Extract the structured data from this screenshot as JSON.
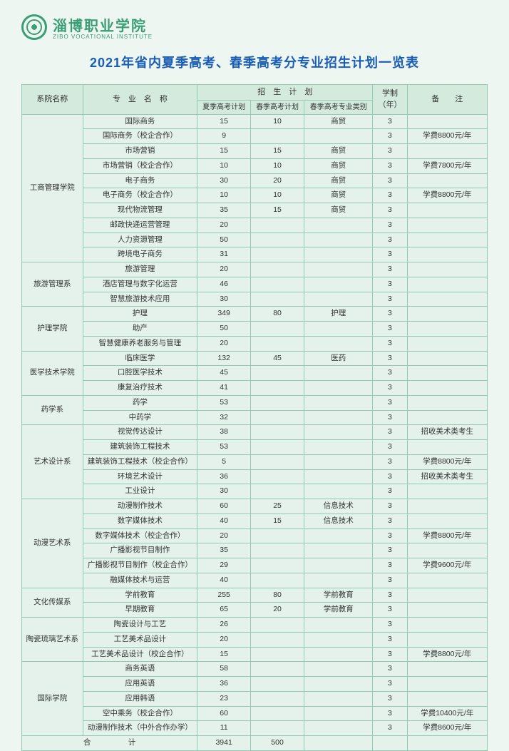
{
  "logo": {
    "cn": "淄博职业学院",
    "en": "ZIBO VOCATIONAL INSTITUTE"
  },
  "title": "2021年省内夏季高考、春季高考分专业招生计划一览表",
  "head": {
    "dept": "系院名称",
    "major": "专　业　名　称",
    "plan": "招　生　计　划",
    "summer": "夏季高考计划",
    "spring": "春季高考计划",
    "springCat": "春季高考专业类别",
    "years": "学制（年）",
    "remark": "备　　注"
  },
  "total": {
    "label": "合　　　　　计",
    "summer": "3941",
    "spring": "500"
  },
  "departments": [
    {
      "name": "工商管理学院",
      "rows": [
        {
          "major": "国际商务",
          "summer": "15",
          "spring": "10",
          "cat": "商贸",
          "yr": "3",
          "rem": ""
        },
        {
          "major": "国际商务（校企合作）",
          "summer": "9",
          "spring": "",
          "cat": "",
          "yr": "3",
          "rem": "学费8800元/年"
        },
        {
          "major": "市场营销",
          "summer": "15",
          "spring": "15",
          "cat": "商贸",
          "yr": "3",
          "rem": ""
        },
        {
          "major": "市场营销（校企合作）",
          "summer": "10",
          "spring": "10",
          "cat": "商贸",
          "yr": "3",
          "rem": "学费7800元/年"
        },
        {
          "major": "电子商务",
          "summer": "30",
          "spring": "20",
          "cat": "商贸",
          "yr": "3",
          "rem": ""
        },
        {
          "major": "电子商务（校企合作）",
          "summer": "10",
          "spring": "10",
          "cat": "商贸",
          "yr": "3",
          "rem": "学费8800元/年"
        },
        {
          "major": "现代物流管理",
          "summer": "35",
          "spring": "15",
          "cat": "商贸",
          "yr": "3",
          "rem": ""
        },
        {
          "major": "邮政快递运营管理",
          "summer": "20",
          "spring": "",
          "cat": "",
          "yr": "3",
          "rem": ""
        },
        {
          "major": "人力资源管理",
          "summer": "50",
          "spring": "",
          "cat": "",
          "yr": "3",
          "rem": ""
        },
        {
          "major": "跨境电子商务",
          "summer": "31",
          "spring": "",
          "cat": "",
          "yr": "3",
          "rem": ""
        }
      ]
    },
    {
      "name": "旅游管理系",
      "rows": [
        {
          "major": "旅游管理",
          "summer": "20",
          "spring": "",
          "cat": "",
          "yr": "3",
          "rem": ""
        },
        {
          "major": "酒店管理与数字化运营",
          "summer": "46",
          "spring": "",
          "cat": "",
          "yr": "3",
          "rem": ""
        },
        {
          "major": "智慧旅游技术应用",
          "summer": "30",
          "spring": "",
          "cat": "",
          "yr": "3",
          "rem": ""
        }
      ]
    },
    {
      "name": "护理学院",
      "rows": [
        {
          "major": "护理",
          "summer": "349",
          "spring": "80",
          "cat": "护理",
          "yr": "3",
          "rem": ""
        },
        {
          "major": "助产",
          "summer": "50",
          "spring": "",
          "cat": "",
          "yr": "3",
          "rem": ""
        },
        {
          "major": "智慧健康养老服务与管理",
          "summer": "20",
          "spring": "",
          "cat": "",
          "yr": "3",
          "rem": ""
        }
      ]
    },
    {
      "name": "医学技术学院",
      "rows": [
        {
          "major": "临床医学",
          "summer": "132",
          "spring": "45",
          "cat": "医药",
          "yr": "3",
          "rem": ""
        },
        {
          "major": "口腔医学技术",
          "summer": "45",
          "spring": "",
          "cat": "",
          "yr": "3",
          "rem": ""
        },
        {
          "major": "康复治疗技术",
          "summer": "41",
          "spring": "",
          "cat": "",
          "yr": "3",
          "rem": ""
        }
      ]
    },
    {
      "name": "药学系",
      "rows": [
        {
          "major": "药学",
          "summer": "53",
          "spring": "",
          "cat": "",
          "yr": "3",
          "rem": ""
        },
        {
          "major": "中药学",
          "summer": "32",
          "spring": "",
          "cat": "",
          "yr": "3",
          "rem": ""
        }
      ]
    },
    {
      "name": "艺术设计系",
      "rows": [
        {
          "major": "视觉传达设计",
          "summer": "38",
          "spring": "",
          "cat": "",
          "yr": "3",
          "rem": "招收美术类考生"
        },
        {
          "major": "建筑装饰工程技术",
          "summer": "53",
          "spring": "",
          "cat": "",
          "yr": "3",
          "rem": ""
        },
        {
          "major": "建筑装饰工程技术（校企合作）",
          "summer": "5",
          "spring": "",
          "cat": "",
          "yr": "3",
          "rem": "学费8800元/年"
        },
        {
          "major": "环境艺术设计",
          "summer": "36",
          "spring": "",
          "cat": "",
          "yr": "3",
          "rem": "招收美术类考生"
        },
        {
          "major": "工业设计",
          "summer": "30",
          "spring": "",
          "cat": "",
          "yr": "3",
          "rem": ""
        }
      ]
    },
    {
      "name": "动漫艺术系",
      "rows": [
        {
          "major": "动漫制作技术",
          "summer": "60",
          "spring": "25",
          "cat": "信息技术",
          "yr": "3",
          "rem": ""
        },
        {
          "major": "数字媒体技术",
          "summer": "40",
          "spring": "15",
          "cat": "信息技术",
          "yr": "3",
          "rem": ""
        },
        {
          "major": "数字媒体技术（校企合作）",
          "summer": "20",
          "spring": "",
          "cat": "",
          "yr": "3",
          "rem": "学费8800元/年"
        },
        {
          "major": "广播影视节目制作",
          "summer": "35",
          "spring": "",
          "cat": "",
          "yr": "3",
          "rem": ""
        },
        {
          "major": "广播影视节目制作（校企合作）",
          "summer": "29",
          "spring": "",
          "cat": "",
          "yr": "3",
          "rem": "学费9600元/年"
        },
        {
          "major": "融媒体技术与运营",
          "summer": "40",
          "spring": "",
          "cat": "",
          "yr": "3",
          "rem": ""
        }
      ]
    },
    {
      "name": "文化传媒系",
      "rows": [
        {
          "major": "学前教育",
          "summer": "255",
          "spring": "80",
          "cat": "学前教育",
          "yr": "3",
          "rem": ""
        },
        {
          "major": "早期教育",
          "summer": "65",
          "spring": "20",
          "cat": "学前教育",
          "yr": "3",
          "rem": ""
        }
      ]
    },
    {
      "name": "陶瓷琉璃艺术系",
      "rows": [
        {
          "major": "陶瓷设计与工艺",
          "summer": "26",
          "spring": "",
          "cat": "",
          "yr": "3",
          "rem": ""
        },
        {
          "major": "工艺美术品设计",
          "summer": "20",
          "spring": "",
          "cat": "",
          "yr": "3",
          "rem": ""
        },
        {
          "major": "工艺美术品设计（校企合作）",
          "summer": "15",
          "spring": "",
          "cat": "",
          "yr": "3",
          "rem": "学费8800元/年"
        }
      ]
    },
    {
      "name": "国际学院",
      "rows": [
        {
          "major": "商务英语",
          "summer": "58",
          "spring": "",
          "cat": "",
          "yr": "3",
          "rem": ""
        },
        {
          "major": "应用英语",
          "summer": "36",
          "spring": "",
          "cat": "",
          "yr": "3",
          "rem": ""
        },
        {
          "major": "应用韩语",
          "summer": "23",
          "spring": "",
          "cat": "",
          "yr": "3",
          "rem": ""
        },
        {
          "major": "空中乘务（校企合作）",
          "summer": "60",
          "spring": "",
          "cat": "",
          "yr": "3",
          "rem": "学费10400元/年"
        },
        {
          "major": "动漫制作技术（中外合作办学）",
          "summer": "11",
          "spring": "",
          "cat": "",
          "yr": "3",
          "rem": "学费8600元/年"
        }
      ]
    }
  ]
}
